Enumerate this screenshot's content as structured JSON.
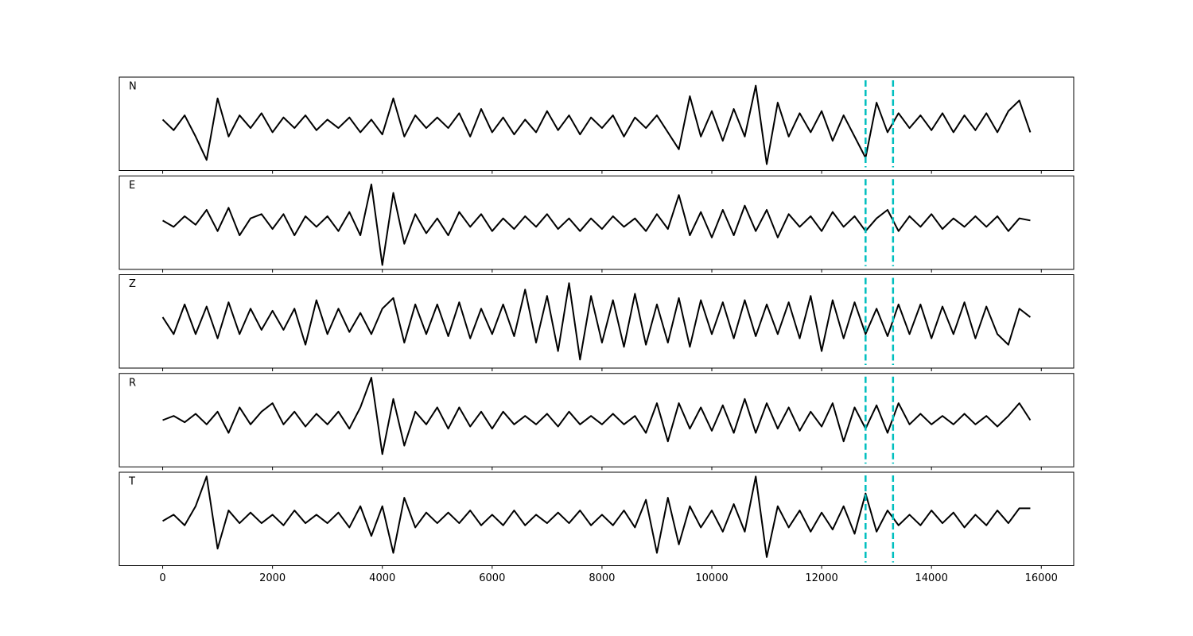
{
  "chart_data": {
    "type": "line",
    "x": [
      0,
      200,
      400,
      600,
      800,
      1000,
      1200,
      1400,
      1600,
      1800,
      2000,
      2200,
      2400,
      2600,
      2800,
      3000,
      3200,
      3400,
      3600,
      3800,
      4000,
      4200,
      4400,
      4600,
      4800,
      5000,
      5200,
      5400,
      5600,
      5800,
      6000,
      6200,
      6400,
      6600,
      6800,
      7000,
      7200,
      7400,
      7600,
      7800,
      8000,
      8200,
      8400,
      8600,
      8800,
      9000,
      9200,
      9400,
      9600,
      9800,
      10000,
      10200,
      10400,
      10600,
      10800,
      11000,
      11200,
      11400,
      11600,
      11800,
      12000,
      12200,
      12400,
      12600,
      12800,
      13000,
      13200,
      13400,
      13600,
      13800,
      14000,
      14200,
      14400,
      14600,
      14800,
      15000,
      15200,
      15400,
      15600,
      15800
    ],
    "xlim": [
      -790,
      16590
    ],
    "xticks": [
      0,
      2000,
      4000,
      6000,
      8000,
      10000,
      12000,
      14000,
      16000
    ],
    "ylim": [
      -1.1,
      1.1
    ],
    "series": [
      {
        "name": "N",
        "color": "#000000",
        "values": [
          0.1,
          -0.15,
          0.2,
          -0.3,
          -0.85,
          0.6,
          -0.3,
          0.2,
          -0.1,
          0.25,
          -0.2,
          0.15,
          -0.1,
          0.2,
          -0.15,
          0.1,
          -0.1,
          0.15,
          -0.2,
          0.1,
          -0.25,
          0.6,
          -0.3,
          0.2,
          -0.1,
          0.15,
          -0.1,
          0.25,
          -0.3,
          0.35,
          -0.2,
          0.15,
          -0.25,
          0.1,
          -0.2,
          0.3,
          -0.15,
          0.2,
          -0.25,
          0.15,
          -0.1,
          0.2,
          -0.3,
          0.15,
          -0.1,
          0.2,
          -0.2,
          -0.6,
          0.65,
          -0.3,
          0.3,
          -0.4,
          0.35,
          -0.3,
          0.9,
          -0.95,
          0.5,
          -0.3,
          0.25,
          -0.2,
          0.3,
          -0.4,
          0.2,
          -0.3,
          -0.8,
          0.5,
          -0.2,
          0.25,
          -0.1,
          0.2,
          -0.15,
          0.25,
          -0.2,
          0.2,
          -0.15,
          0.25,
          -0.2,
          0.3,
          0.55,
          -0.2
        ]
      },
      {
        "name": "E",
        "color": "#000000",
        "values": [
          0.05,
          -0.1,
          0.15,
          -0.05,
          0.3,
          -0.2,
          0.35,
          -0.3,
          0.1,
          0.2,
          -0.15,
          0.2,
          -0.3,
          0.15,
          -0.1,
          0.15,
          -0.2,
          0.25,
          -0.3,
          0.9,
          -1.0,
          0.7,
          -0.5,
          0.2,
          -0.25,
          0.1,
          -0.3,
          0.25,
          -0.1,
          0.2,
          -0.2,
          0.1,
          -0.15,
          0.15,
          -0.1,
          0.2,
          -0.15,
          0.1,
          -0.2,
          0.1,
          -0.15,
          0.15,
          -0.1,
          0.1,
          -0.2,
          0.2,
          -0.15,
          0.65,
          -0.3,
          0.25,
          -0.35,
          0.3,
          -0.3,
          0.4,
          -0.2,
          0.3,
          -0.35,
          0.2,
          -0.1,
          0.15,
          -0.2,
          0.25,
          -0.1,
          0.15,
          -0.2,
          0.1,
          0.3,
          -0.2,
          0.15,
          -0.1,
          0.2,
          -0.15,
          0.1,
          -0.1,
          0.15,
          -0.1,
          0.15,
          -0.2,
          0.1,
          0.05
        ]
      },
      {
        "name": "Z",
        "color": "#000000",
        "values": [
          0.1,
          -0.3,
          0.4,
          -0.3,
          0.35,
          -0.4,
          0.45,
          -0.3,
          0.3,
          -0.2,
          0.25,
          -0.2,
          0.3,
          -0.55,
          0.5,
          -0.3,
          0.3,
          -0.25,
          0.2,
          -0.3,
          0.3,
          0.55,
          -0.5,
          0.4,
          -0.3,
          0.4,
          -0.35,
          0.45,
          -0.4,
          0.3,
          -0.3,
          0.4,
          -0.35,
          0.75,
          -0.5,
          0.6,
          -0.7,
          0.9,
          -0.9,
          0.6,
          -0.5,
          0.5,
          -0.6,
          0.65,
          -0.55,
          0.4,
          -0.5,
          0.55,
          -0.6,
          0.5,
          -0.3,
          0.45,
          -0.4,
          0.5,
          -0.35,
          0.4,
          -0.3,
          0.45,
          -0.4,
          0.6,
          -0.7,
          0.5,
          -0.4,
          0.45,
          -0.3,
          0.3,
          -0.35,
          0.4,
          -0.3,
          0.4,
          -0.4,
          0.35,
          -0.3,
          0.45,
          -0.4,
          0.35,
          -0.3,
          -0.55,
          0.3,
          0.1
        ]
      },
      {
        "name": "R",
        "color": "#000000",
        "values": [
          0,
          0.1,
          -0.05,
          0.15,
          -0.1,
          0.2,
          -0.3,
          0.3,
          -0.1,
          0.2,
          0.4,
          -0.1,
          0.2,
          -0.15,
          0.15,
          -0.1,
          0.2,
          -0.2,
          0.3,
          1.0,
          -0.8,
          0.5,
          -0.6,
          0.2,
          -0.1,
          0.3,
          -0.2,
          0.3,
          -0.15,
          0.2,
          -0.2,
          0.2,
          -0.1,
          0.1,
          -0.1,
          0.15,
          -0.15,
          0.2,
          -0.1,
          0.1,
          -0.1,
          0.15,
          -0.1,
          0.1,
          -0.3,
          0.4,
          -0.5,
          0.4,
          -0.2,
          0.3,
          -0.25,
          0.35,
          -0.3,
          0.5,
          -0.3,
          0.4,
          -0.2,
          0.3,
          -0.25,
          0.2,
          -0.15,
          0.4,
          -0.5,
          0.3,
          -0.2,
          0.35,
          -0.3,
          0.4,
          -0.1,
          0.15,
          -0.1,
          0.1,
          -0.1,
          0.15,
          -0.1,
          0.1,
          -0.15,
          0.1,
          0.4,
          0
        ]
      },
      {
        "name": "T",
        "color": "#000000",
        "values": [
          -0.05,
          0.1,
          -0.15,
          0.3,
          1.0,
          -0.7,
          0.2,
          -0.1,
          0.15,
          -0.1,
          0.1,
          -0.15,
          0.2,
          -0.1,
          0.1,
          -0.1,
          0.15,
          -0.2,
          0.3,
          -0.4,
          0.3,
          -0.8,
          0.5,
          -0.2,
          0.15,
          -0.1,
          0.15,
          -0.1,
          0.2,
          -0.15,
          0.1,
          -0.15,
          0.2,
          -0.15,
          0.1,
          -0.1,
          0.15,
          -0.1,
          0.2,
          -0.15,
          0.1,
          -0.15,
          0.2,
          -0.2,
          0.45,
          -0.8,
          0.5,
          -0.6,
          0.3,
          -0.2,
          0.2,
          -0.3,
          0.35,
          -0.3,
          1.0,
          -0.9,
          0.3,
          -0.2,
          0.2,
          -0.3,
          0.15,
          -0.25,
          0.3,
          -0.35,
          0.6,
          -0.3,
          0.2,
          -0.15,
          0.1,
          -0.15,
          0.2,
          -0.1,
          0.15,
          -0.2,
          0.1,
          -0.15,
          0.2,
          -0.1,
          0.25,
          0.25
        ]
      }
    ],
    "vlines": {
      "x": [
        12800,
        13300
      ],
      "color": "#00bfbf"
    }
  }
}
